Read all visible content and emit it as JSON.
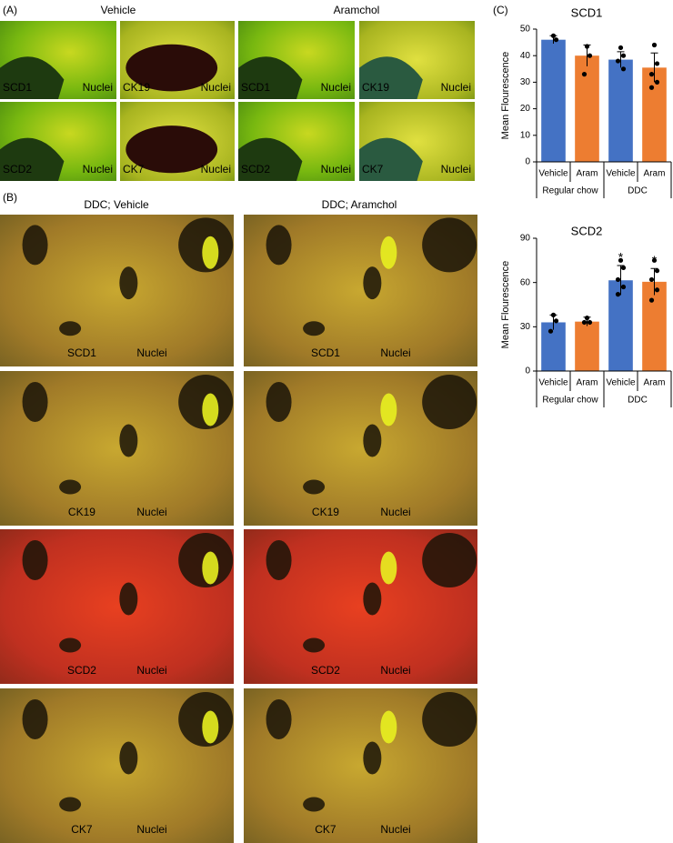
{
  "panels": {
    "A": {
      "label": "(A)",
      "headers": [
        "Vehicle",
        "Aramchol"
      ],
      "images": [
        {
          "marker": "SCD1",
          "marker_color": "#e8201a",
          "stain": "Nuclei"
        },
        {
          "marker": "CK19",
          "marker_color": "#22c21a",
          "stain": "Nuclei"
        },
        {
          "marker": "SCD1",
          "marker_color": "#e8201a",
          "stain": "Nuclei"
        },
        {
          "marker": "CK19",
          "marker_color": "#22c21a",
          "stain": "Nuclei"
        },
        {
          "marker": "SCD2",
          "marker_color": "#e8201a",
          "stain": "Nuclei"
        },
        {
          "marker": "CK7",
          "marker_color": "#22c21a",
          "stain": "Nuclei"
        },
        {
          "marker": "SCD2",
          "marker_color": "#e8201a",
          "stain": "Nuclei"
        },
        {
          "marker": "CK7",
          "marker_color": "#22c21a",
          "stain": "Nuclei"
        }
      ]
    },
    "B": {
      "label": "(B)",
      "headers": [
        "DDC; Vehicle",
        "DDC; Aramchol"
      ],
      "images": [
        {
          "marker": "SCD1",
          "marker_color": "#e8201a",
          "stain": "Nuclei"
        },
        {
          "marker": "SCD1",
          "marker_color": "#e8201a",
          "stain": "Nuclei"
        },
        {
          "marker": "CK19",
          "marker_color": "#22c21a",
          "stain": "Nuclei"
        },
        {
          "marker": "CK19",
          "marker_color": "#22c21a",
          "stain": "Nuclei"
        },
        {
          "marker": "SCD2",
          "marker_color": "#e8201a",
          "stain": "Nuclei"
        },
        {
          "marker": "SCD2",
          "marker_color": "#e8201a",
          "stain": "Nuclei"
        },
        {
          "marker": "CK7",
          "marker_color": "#22c21a",
          "stain": "Nuclei"
        },
        {
          "marker": "CK7",
          "marker_color": "#22c21a",
          "stain": "Nuclei"
        }
      ]
    },
    "C": {
      "label": "(C)"
    }
  },
  "chart_data": [
    {
      "type": "bar",
      "title": "SCD1",
      "y_label": "Mean Flourescence",
      "categories": [
        "Vehicle",
        "Aram",
        "Vehicle",
        "Aram"
      ],
      "groups": [
        "Regular chow",
        "DDC"
      ],
      "colors": [
        "#4472c4",
        "#ed7d31",
        "#4472c4",
        "#ed7d31"
      ],
      "values": [
        46,
        40,
        38.5,
        35.5
      ],
      "errors": [
        1.5,
        4,
        3,
        5.5
      ],
      "points": [
        [
          47.5,
          46
        ],
        [
          43.5,
          40,
          33
        ],
        [
          43,
          40,
          38,
          35
        ],
        [
          44,
          37,
          33,
          30,
          28
        ]
      ],
      "ylim": [
        0,
        50
      ],
      "yticks": [
        0,
        10,
        20,
        30,
        40,
        50
      ]
    },
    {
      "type": "bar",
      "title": "SCD2",
      "y_label": "Mean Flourescence",
      "categories": [
        "Vehicle",
        "Aram",
        "Vehicle",
        "Aram"
      ],
      "groups": [
        "Regular chow",
        "DDC"
      ],
      "colors": [
        "#4472c4",
        "#ed7d31",
        "#4472c4",
        "#ed7d31"
      ],
      "values": [
        33,
        33.5,
        61.5,
        60.5
      ],
      "errors": [
        5,
        3,
        10,
        9
      ],
      "points": [
        [
          38,
          34,
          27
        ],
        [
          36,
          33,
          33
        ],
        [
          75,
          70,
          62,
          57,
          52
        ],
        [
          75,
          68,
          62,
          55,
          48
        ]
      ],
      "annotations": [
        null,
        null,
        "*",
        "*"
      ],
      "ylim": [
        0,
        90
      ],
      "yticks": [
        0,
        30,
        60,
        90
      ]
    }
  ]
}
